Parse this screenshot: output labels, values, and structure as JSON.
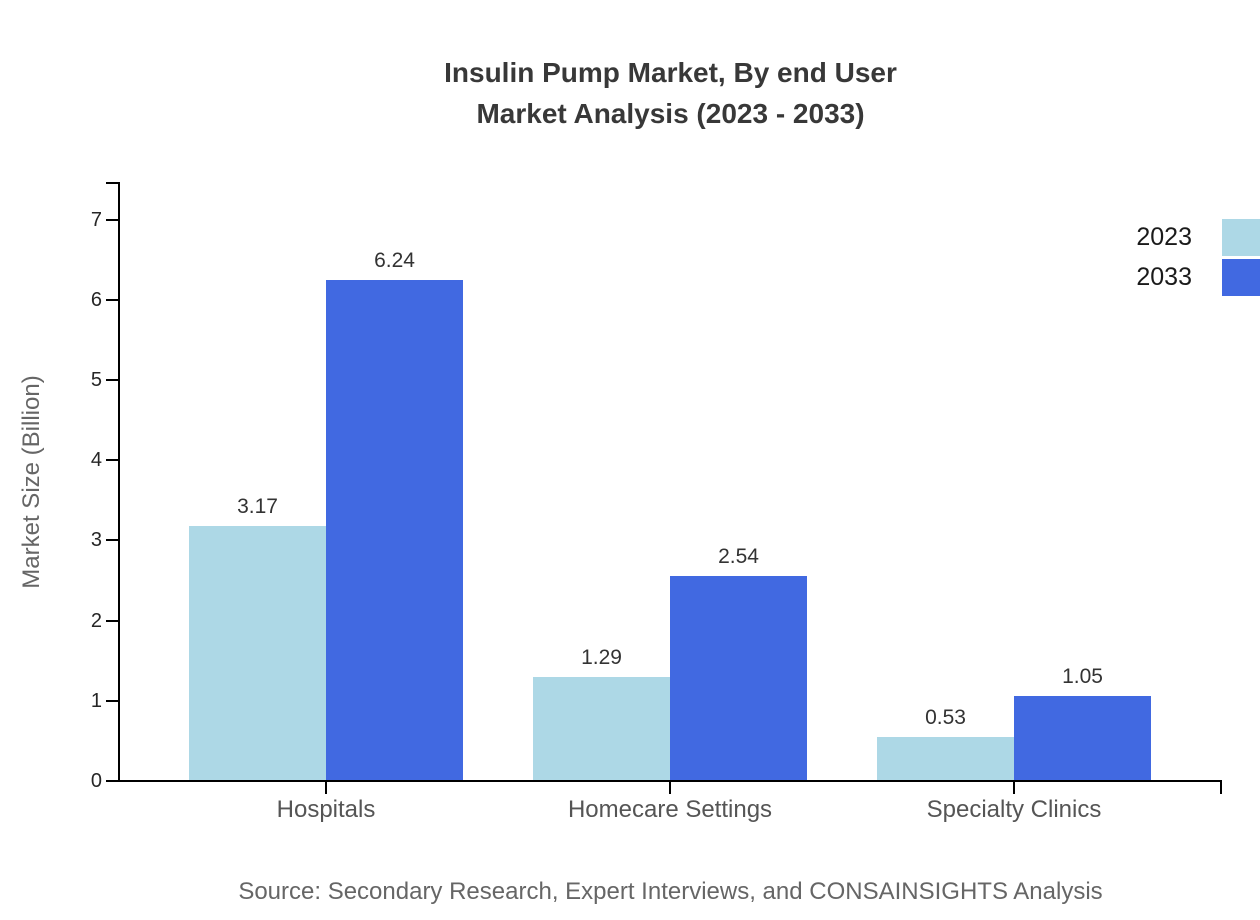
{
  "title": {
    "line1": "Insulin Pump Market, By end User",
    "line2": "Market Analysis (2023 - 2033)"
  },
  "source": "Source: Secondary Research, Expert Interviews, and CONSAINSIGHTS Analysis",
  "chart_data": {
    "type": "bar",
    "title": "Insulin Pump Market, By end User Market Analysis (2023 - 2033)",
    "categories": [
      "Hospitals",
      "Homecare Settings",
      "Specialty Clinics"
    ],
    "series": [
      {
        "name": "2023",
        "color": "#ADD8E6",
        "values": [
          3.17,
          1.29,
          0.53
        ]
      },
      {
        "name": "2033",
        "color": "#4169E1",
        "values": [
          6.24,
          2.54,
          1.05
        ]
      }
    ],
    "xlabel": "",
    "ylabel": "Market Size (Billion)",
    "ylim": [
      0,
      7
    ],
    "yticks": [
      0,
      1,
      2,
      3,
      4,
      5,
      6,
      7
    ],
    "grid": false,
    "value_labels": true,
    "legend_position": "top-right",
    "axis_color": "#000000"
  }
}
